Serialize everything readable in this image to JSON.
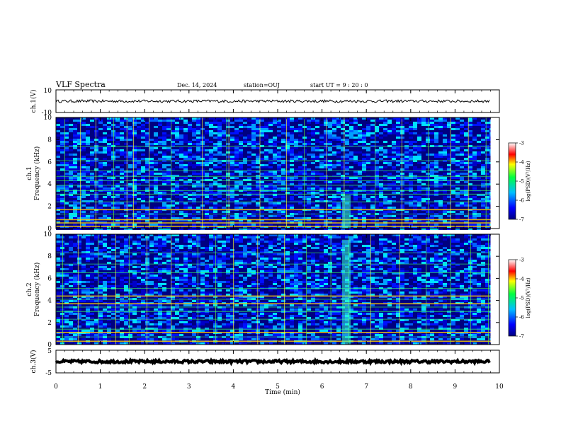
{
  "header": {
    "title": "VLF Spectra",
    "date": "Dec. 14, 2024",
    "station": "station=OUJ",
    "start_ut": "start  UT =   9 : 20 : 0"
  },
  "chart_data": {
    "type": "heatmap",
    "xlabel": "Time (min)",
    "xlim": [
      0,
      10
    ],
    "xticks": [
      "0",
      "1",
      "2",
      "3",
      "4",
      "5",
      "6",
      "7",
      "8",
      "9",
      "10"
    ],
    "data_end_min": 9.8,
    "panels": [
      {
        "id": "ch1-waveform",
        "type": "line",
        "ylabel": "ch.1(V)",
        "ylim": [
          -10,
          10
        ],
        "yticks": [
          "10",
          "-10"
        ],
        "baseline": 0,
        "noise_amplitude": 1.2
      },
      {
        "id": "ch1-spectrogram",
        "type": "heatmap",
        "ylabel_top": "ch.1",
        "ylabel": "Frequency (kHz)",
        "ylim": [
          0,
          10
        ],
        "yticks": [
          "0",
          "2",
          "4",
          "6",
          "8",
          "10"
        ],
        "colorbar": {
          "label": "log(PSD)(V²/Hz)",
          "range": [
            -7,
            -3
          ],
          "ticks": [
            "-3",
            "-4",
            "-5",
            "-6",
            "-7"
          ]
        },
        "bands_khz": [
          0.2,
          0.5,
          0.8,
          1.3,
          1.7,
          2.4,
          3.1,
          3.4,
          3.9,
          4.3,
          4.7,
          5.2,
          6.1,
          7.4
        ],
        "bright_bands_khz": [
          0.2,
          0.5,
          0.8,
          1.7
        ],
        "vertical_lines_min": [
          0.2,
          0.55,
          0.9,
          1.3,
          1.6,
          1.75,
          2.1,
          2.6,
          3.3,
          3.85,
          3.9,
          4.6,
          5.2,
          5.6,
          6.1,
          6.5,
          7.2,
          7.8,
          8.4,
          8.9,
          9.3,
          9.7
        ],
        "events": [
          {
            "time_min": 6.55,
            "freq_max_khz": 3.0
          }
        ]
      },
      {
        "id": "ch2-spectrogram",
        "type": "heatmap",
        "ylabel_top": "ch.2",
        "ylabel": "Frequency (kHz)",
        "ylim": [
          0,
          10
        ],
        "yticks": [
          "0",
          "2",
          "4",
          "6",
          "8",
          "10"
        ],
        "colorbar": {
          "label": "log(PSD)(V²/Hz)",
          "range": [
            -7,
            -3
          ],
          "ticks": [
            "-3",
            "-4",
            "-5",
            "-6",
            "-7"
          ]
        },
        "bands_khz": [
          0.3,
          0.7,
          1.1,
          1.4,
          2.3,
          3.0,
          3.4,
          3.7,
          4.1,
          4.4,
          5.1,
          6.5,
          7.3,
          8.3
        ],
        "bright_bands_khz": [
          0.3,
          1.1,
          3.7,
          4.4
        ],
        "vertical_lines_min": [
          0.15,
          0.5,
          0.95,
          1.35,
          1.65,
          2.05,
          2.6,
          3.2,
          3.6,
          4.0,
          4.55,
          5.15,
          5.65,
          6.2,
          6.6,
          7.1,
          7.75,
          8.35,
          8.9,
          9.35,
          9.75
        ],
        "events": [
          {
            "time_min": 6.55,
            "freq_max_khz": 9.5
          }
        ]
      },
      {
        "id": "ch3-waveform",
        "type": "line",
        "ylabel": "ch.3(V)",
        "ylim": [
          -5,
          5
        ],
        "yticks": [
          "5",
          "-5"
        ],
        "baseline": 0,
        "noise_amplitude": 0.6
      }
    ]
  }
}
